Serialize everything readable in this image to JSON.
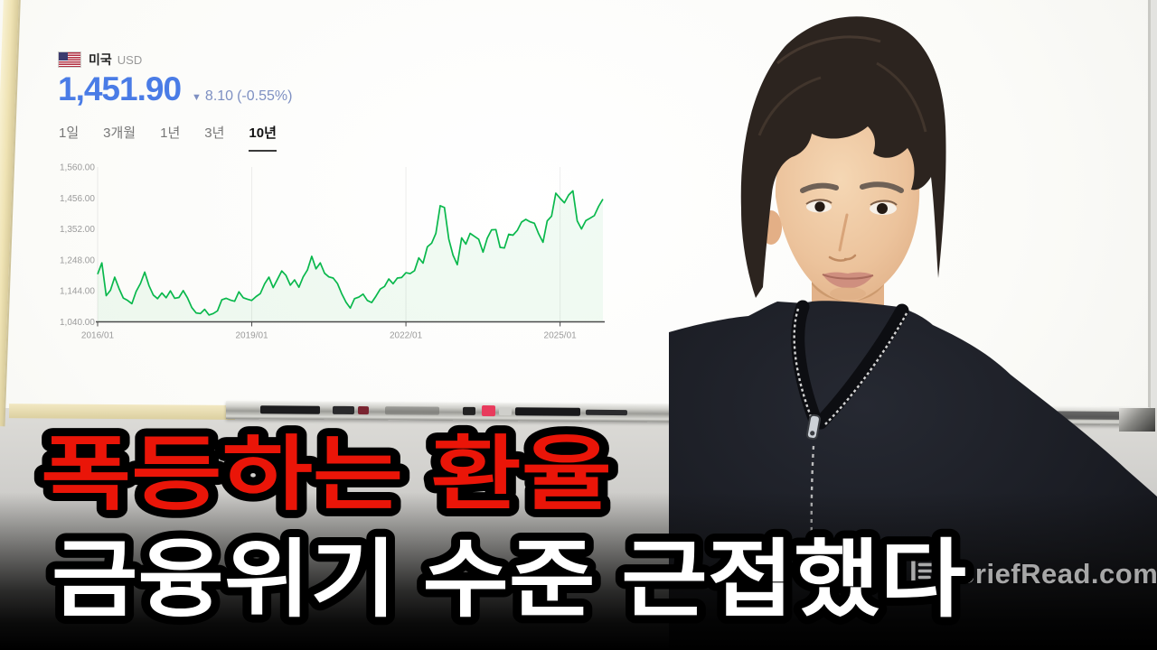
{
  "quote": {
    "country_label": "미국",
    "currency_code": "USD",
    "price": "1,451.90",
    "change_arrow": "▼",
    "change_value": "8.10",
    "change_percent": "(-0.55%)",
    "direction": "down",
    "price_color": "#4a7ce6",
    "change_color": "#7e90c2",
    "tabs": [
      {
        "label": "1일",
        "active": false
      },
      {
        "label": "3개월",
        "active": false
      },
      {
        "label": "1년",
        "active": false
      },
      {
        "label": "3년",
        "active": false
      },
      {
        "label": "10년",
        "active": true
      }
    ]
  },
  "chart_data": {
    "type": "line",
    "series": [
      {
        "name": "미국 USD 환율",
        "values": [
          1200,
          1238,
          1128,
          1146,
          1190,
          1152,
          1120,
          1112,
          1101,
          1142,
          1169,
          1207,
          1162,
          1130,
          1118,
          1137,
          1121,
          1144,
          1119,
          1122,
          1145,
          1120,
          1088,
          1070,
          1068,
          1082,
          1063,
          1068,
          1077,
          1114,
          1119,
          1113,
          1109,
          1141,
          1121,
          1116,
          1112,
          1125,
          1135,
          1168,
          1190,
          1155,
          1183,
          1211,
          1196,
          1163,
          1181,
          1156,
          1191,
          1214,
          1260,
          1218,
          1238,
          1203,
          1191,
          1187,
          1169,
          1135,
          1106,
          1086,
          1118,
          1123,
          1133,
          1112,
          1105,
          1126,
          1150,
          1159,
          1184,
          1168,
          1187,
          1189,
          1205,
          1202,
          1212,
          1255,
          1237,
          1292,
          1304,
          1337,
          1430,
          1424,
          1318,
          1264,
          1232,
          1322,
          1301,
          1337,
          1327,
          1317,
          1274,
          1321,
          1349,
          1350,
          1290,
          1288,
          1334,
          1331,
          1347,
          1375,
          1384,
          1376,
          1371,
          1336,
          1307,
          1379,
          1395,
          1472,
          1455,
          1440,
          1466,
          1480,
          1379,
          1352,
          1380,
          1388,
          1397,
          1428,
          1452
        ]
      }
    ],
    "x_start": "2016/01",
    "x_end": "2025/11",
    "x_interval": "month",
    "x_ticks": [
      {
        "label": "2016/01",
        "month_index": 0
      },
      {
        "label": "2019/01",
        "month_index": 36
      },
      {
        "label": "2022/01",
        "month_index": 72
      },
      {
        "label": "2025/01",
        "month_index": 108
      }
    ],
    "y_ticks": [
      {
        "label": "1,560.00",
        "value": 1560
      },
      {
        "label": "1,456.00",
        "value": 1456
      },
      {
        "label": "1,352.00",
        "value": 1352
      },
      {
        "label": "1,248.00",
        "value": 1248
      },
      {
        "label": "1,144.00",
        "value": 1144
      },
      {
        "label": "1,040.00",
        "value": 1040
      }
    ],
    "ylim": [
      1040,
      1560
    ],
    "line_color": "#09b84c",
    "fill_color": "rgba(9,184,76,0.06)",
    "grid": "faint vertical lines at year ticks",
    "legend": "none"
  },
  "overlay": {
    "headline_top": "폭등하는 환율",
    "headline_top_color": "#ea1508",
    "headline_bottom": "금융위기 수준 근접했다",
    "headline_bottom_color": "#ffffff",
    "outline_color": "#000000"
  },
  "watermark": {
    "text": "BriefRead.com",
    "icon": "document-pen-icon",
    "color": "#c2c2c2"
  },
  "icons": {
    "flag": "us-flag-icon",
    "change_direction": "down-triangle-icon"
  }
}
